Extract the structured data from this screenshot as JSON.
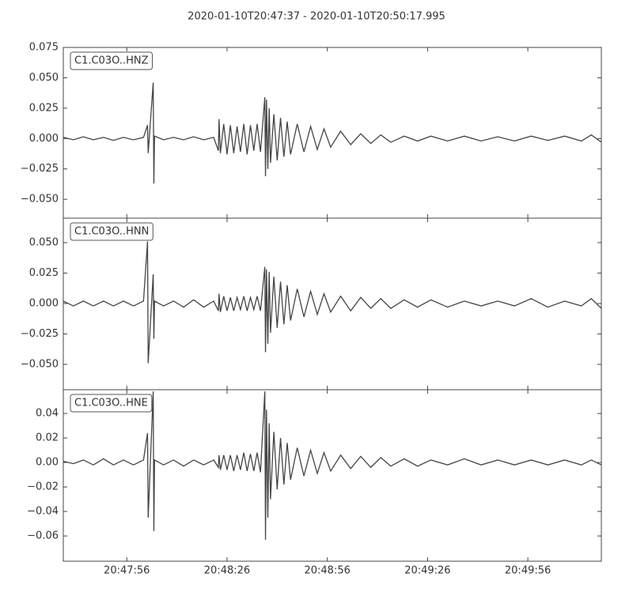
{
  "title": "2020-01-10T20:47:37  -  2020-01-10T20:50:17.995",
  "chart_data": [
    {
      "type": "line",
      "xlim": [
        0,
        160.995
      ],
      "ylim": [
        -0.0655,
        0.075
      ],
      "yticks": [
        {
          "value": 0.075,
          "label": "0.075"
        },
        {
          "value": 0.05,
          "label": "0.050"
        },
        {
          "value": 0.025,
          "label": "0.025"
        },
        {
          "value": 0,
          "label": "0.000"
        },
        {
          "value": -0.025,
          "label": "−0.025"
        },
        {
          "value": -0.05,
          "label": "−0.050"
        }
      ],
      "x": [
        0,
        3,
        6,
        9,
        12,
        15,
        18,
        21,
        24,
        25.2,
        25.4,
        26.9,
        27.1,
        27.3,
        30,
        33,
        36,
        39,
        42,
        45,
        46.4,
        46.6,
        47,
        48,
        49,
        50,
        51,
        52,
        53,
        54,
        55,
        56,
        57,
        58,
        59,
        60.3,
        60.5,
        60.8,
        61.2,
        61.6,
        62,
        63,
        64,
        65,
        66,
        67,
        68,
        70,
        72,
        74,
        76,
        78,
        80,
        83,
        86,
        89,
        92,
        95,
        98,
        102,
        106,
        110,
        115,
        120,
        125,
        130,
        135,
        140,
        145,
        150,
        155,
        158,
        161
      ],
      "series": [
        {
          "name": "C1.C03O..HNZ",
          "color": "#444444",
          "values": [
            0.001,
            -0.001,
            0.0015,
            -0.001,
            0.001,
            -0.0015,
            0.001,
            -0.001,
            0.001,
            0.011,
            -0.012,
            0.046,
            -0.037,
            0.002,
            -0.001,
            0.001,
            -0.001,
            0.0015,
            -0.001,
            0.001,
            -0.01,
            0.016,
            -0.012,
            0.012,
            -0.013,
            0.011,
            -0.012,
            0.01,
            -0.011,
            0.012,
            -0.013,
            0.011,
            -0.01,
            0.012,
            -0.011,
            0.034,
            -0.031,
            0.032,
            -0.025,
            0.025,
            -0.02,
            0.02,
            -0.018,
            0.017,
            -0.015,
            0.014,
            -0.013,
            0.012,
            -0.011,
            0.01,
            -0.009,
            0.008,
            -0.007,
            0.006,
            -0.005,
            0.004,
            -0.004,
            0.003,
            -0.003,
            0.002,
            -0.002,
            0.002,
            -0.002,
            0.002,
            -0.002,
            0.0015,
            -0.002,
            0.002,
            -0.0015,
            0.002,
            -0.002,
            0.003,
            -0.003
          ]
        }
      ]
    },
    {
      "type": "line",
      "xlim": [
        0,
        160.995
      ],
      "ylim": [
        -0.0708,
        0.0701
      ],
      "yticks": [
        {
          "value": 0.05,
          "label": "0.050"
        },
        {
          "value": 0.025,
          "label": "0.025"
        },
        {
          "value": 0,
          "label": "0.000"
        },
        {
          "value": -0.025,
          "label": "−0.025"
        },
        {
          "value": -0.05,
          "label": "−0.050"
        }
      ],
      "x": [
        0,
        3,
        6,
        9,
        12,
        15,
        18,
        21,
        24,
        25.2,
        25.4,
        26.9,
        27.1,
        27.3,
        30,
        33,
        36,
        39,
        42,
        45,
        46.4,
        46.6,
        47,
        48,
        49,
        50,
        51,
        52,
        53,
        54,
        55,
        56,
        57,
        58,
        59,
        60.3,
        60.5,
        60.8,
        61.2,
        61.6,
        62,
        63,
        64,
        65,
        66,
        67,
        68,
        70,
        72,
        74,
        76,
        78,
        80,
        83,
        86,
        89,
        92,
        95,
        98,
        102,
        106,
        110,
        115,
        120,
        125,
        130,
        135,
        140,
        145,
        150,
        155,
        158,
        161
      ],
      "series": [
        {
          "name": "C1.C03O..HNN",
          "color": "#444444",
          "values": [
            0.002,
            -0.002,
            0.002,
            -0.002,
            0.002,
            -0.002,
            0.002,
            -0.002,
            0.002,
            0.051,
            -0.049,
            0.024,
            -0.029,
            0.002,
            -0.002,
            0.002,
            -0.003,
            0.003,
            -0.003,
            0.002,
            -0.006,
            0.008,
            -0.007,
            0.006,
            -0.006,
            0.005,
            -0.006,
            0.005,
            -0.005,
            0.006,
            -0.006,
            0.005,
            -0.005,
            0.006,
            -0.006,
            0.03,
            -0.04,
            0.028,
            -0.033,
            0.026,
            -0.024,
            0.022,
            -0.02,
            0.018,
            -0.017,
            0.015,
            -0.014,
            0.012,
            -0.011,
            0.01,
            -0.009,
            0.008,
            -0.007,
            0.006,
            -0.006,
            0.005,
            -0.004,
            0.004,
            -0.004,
            0.003,
            -0.003,
            0.003,
            -0.003,
            0.002,
            -0.002,
            0.002,
            -0.002,
            0.004,
            -0.003,
            0.002,
            -0.002,
            0.004,
            -0.004
          ]
        }
      ]
    },
    {
      "type": "line",
      "xlim": [
        0,
        160.995
      ],
      "ylim": [
        -0.0806,
        0.0594
      ],
      "yticks": [
        {
          "value": 0.04,
          "label": "0.04"
        },
        {
          "value": 0.02,
          "label": "0.02"
        },
        {
          "value": 0,
          "label": "0.00"
        },
        {
          "value": -0.02,
          "label": "−0.02"
        },
        {
          "value": -0.04,
          "label": "−0.04"
        },
        {
          "value": -0.06,
          "label": "−0.06"
        }
      ],
      "xticks": [
        {
          "value": 19,
          "label": "20:47:56"
        },
        {
          "value": 49,
          "label": "20:48:26"
        },
        {
          "value": 79,
          "label": "20:48:56"
        },
        {
          "value": 109,
          "label": "20:49:26"
        },
        {
          "value": 139,
          "label": "20:49:56"
        }
      ],
      "x": [
        0,
        3,
        6,
        9,
        12,
        15,
        18,
        21,
        24,
        25.2,
        25.4,
        26.9,
        27.1,
        27.3,
        30,
        33,
        36,
        39,
        42,
        45,
        46.4,
        46.6,
        47,
        48,
        49,
        50,
        51,
        52,
        53,
        54,
        55,
        56,
        57,
        58,
        59,
        60.3,
        60.5,
        60.8,
        61.2,
        61.6,
        62,
        63,
        64,
        65,
        66,
        67,
        68,
        70,
        72,
        74,
        76,
        78,
        80,
        83,
        86,
        89,
        92,
        95,
        98,
        102,
        106,
        110,
        115,
        120,
        125,
        130,
        135,
        140,
        145,
        150,
        155,
        158,
        161
      ],
      "series": [
        {
          "name": "C1.C03O..HNE",
          "color": "#444444",
          "values": [
            0.001,
            -0.001,
            0.002,
            -0.002,
            0.003,
            -0.002,
            0.002,
            -0.002,
            0.002,
            0.024,
            -0.045,
            0.058,
            -0.056,
            0.002,
            -0.002,
            0.002,
            -0.003,
            0.002,
            -0.002,
            0.002,
            -0.004,
            0.006,
            -0.006,
            0.006,
            -0.006,
            0.006,
            -0.007,
            0.006,
            -0.006,
            0.008,
            -0.007,
            0.007,
            -0.007,
            0.008,
            -0.008,
            0.058,
            -0.063,
            0.043,
            -0.045,
            0.032,
            -0.03,
            0.025,
            -0.022,
            0.02,
            -0.018,
            0.016,
            -0.014,
            0.012,
            -0.011,
            0.01,
            -0.009,
            0.008,
            -0.007,
            0.006,
            -0.005,
            0.005,
            -0.004,
            0.004,
            -0.003,
            0.003,
            -0.003,
            0.002,
            -0.002,
            0.003,
            -0.002,
            0.002,
            -0.002,
            0.002,
            -0.002,
            0.002,
            -0.002,
            0.002,
            -0.002
          ]
        }
      ]
    }
  ]
}
